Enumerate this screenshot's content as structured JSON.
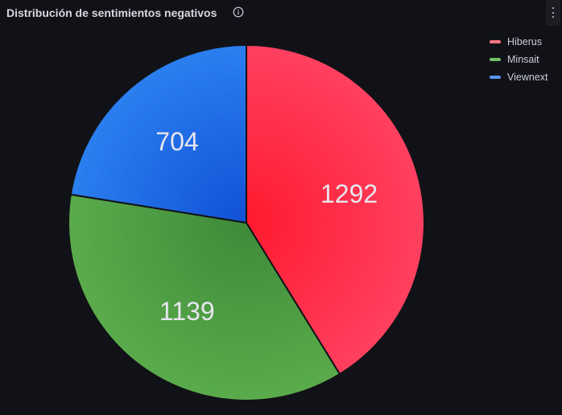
{
  "panel": {
    "title": "Distribución de sentimientos negativos",
    "info_icon": "info-circle-icon",
    "menu_icon": "vertical-ellipsis-icon"
  },
  "legend": {
    "placement": "top-right",
    "items": [
      {
        "label": "Hiberus",
        "color": "#ff7383"
      },
      {
        "label": "Minsait",
        "color": "#73bf69"
      },
      {
        "label": "Viewnext",
        "color": "#5794f2"
      }
    ]
  },
  "chart_data": {
    "type": "pie",
    "title": "Distribución de sentimientos negativos",
    "slices": [
      {
        "name": "Hiberus",
        "value": 1292,
        "label": "1292",
        "color_main": "#ff1a2e",
        "color_edge": "#ff4060"
      },
      {
        "name": "Minsait",
        "value": 1139,
        "label": "1139",
        "color_main": "#3f8a3a",
        "color_edge": "#5aab4b"
      },
      {
        "name": "Viewnext",
        "value": 704,
        "label": "704",
        "color_main": "#1150d6",
        "color_edge": "#2b7ff0"
      }
    ],
    "legend_placement": "top-right"
  },
  "colors": {
    "background": "#111217",
    "title_text": "#d8d9e0",
    "label_text": "#e6e6ee",
    "slice_border": "#111217"
  }
}
